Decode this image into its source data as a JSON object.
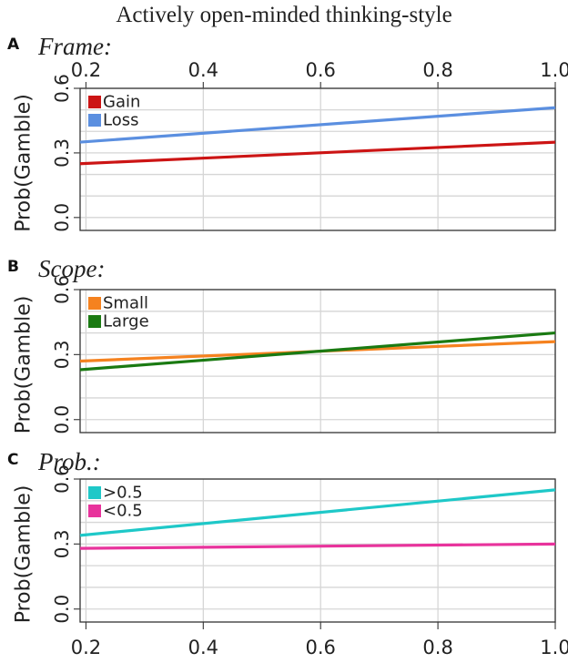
{
  "chart_data": {
    "type": "line",
    "title": "Actively open-minded thinking-style",
    "x_axis": {
      "range": [
        0.19,
        1.0
      ],
      "ticks": [
        0.2,
        0.4,
        0.6,
        0.8,
        1.0
      ],
      "tick_labels": [
        "0.2",
        "0.4",
        "0.6",
        "0.8",
        "1.0"
      ]
    },
    "y_axis": {
      "range": [
        -0.06,
        0.6
      ],
      "ticks": [
        0.0,
        0.3,
        0.6
      ],
      "tick_labels": [
        "0.0",
        "0.3",
        "0.6"
      ],
      "grid_values": [
        0.0,
        0.1,
        0.2,
        0.3,
        0.4,
        0.5,
        0.6
      ]
    },
    "grid": true,
    "panels": [
      {
        "letter": "A",
        "title": "Frame:",
        "ylabel": "Prob(Gamble)",
        "legend_position": "top-left",
        "series": [
          {
            "name": "Gain",
            "color": "#cc1414",
            "x": [
              0.19,
              1.0
            ],
            "y": [
              0.25,
              0.35
            ]
          },
          {
            "name": "Loss",
            "color": "#5b8fe0",
            "x": [
              0.19,
              1.0
            ],
            "y": [
              0.35,
              0.51
            ]
          }
        ]
      },
      {
        "letter": "B",
        "title": "Scope:",
        "ylabel": "Prob(Gamble)",
        "legend_position": "top-left",
        "series": [
          {
            "name": "Small",
            "color": "#f5821f",
            "x": [
              0.19,
              1.0
            ],
            "y": [
              0.27,
              0.36
            ]
          },
          {
            "name": "Large",
            "color": "#1a7a12",
            "x": [
              0.19,
              1.0
            ],
            "y": [
              0.23,
              0.4
            ]
          }
        ]
      },
      {
        "letter": "C",
        "title": "Prob.:",
        "ylabel": "Prob(Gamble)",
        "legend_position": "top-left",
        "series": [
          {
            "name": ">0.5",
            "color": "#1ec8c8",
            "x": [
              0.19,
              1.0
            ],
            "y": [
              0.34,
              0.55
            ]
          },
          {
            "name": "<0.5",
            "color": "#e8339c",
            "x": [
              0.19,
              1.0
            ],
            "y": [
              0.28,
              0.3
            ]
          }
        ]
      }
    ]
  }
}
